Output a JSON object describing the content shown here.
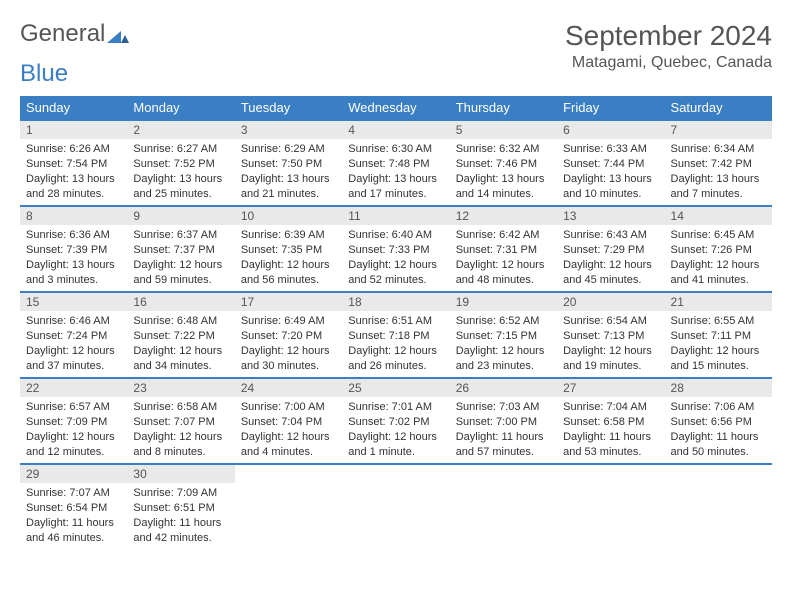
{
  "brand": {
    "name1": "General",
    "name2": "Blue"
  },
  "title": "September 2024",
  "location": "Matagami, Quebec, Canada",
  "columns": [
    "Sunday",
    "Monday",
    "Tuesday",
    "Wednesday",
    "Thursday",
    "Friday",
    "Saturday"
  ],
  "colors": {
    "header_bg": "#3a7fc4",
    "header_text": "#ffffff",
    "daynum_bg": "#e9e9e9",
    "text": "#333333",
    "title_text": "#555555"
  },
  "weeks": [
    [
      {
        "n": "1",
        "sr": "Sunrise: 6:26 AM",
        "ss": "Sunset: 7:54 PM",
        "dl": "Daylight: 13 hours and 28 minutes."
      },
      {
        "n": "2",
        "sr": "Sunrise: 6:27 AM",
        "ss": "Sunset: 7:52 PM",
        "dl": "Daylight: 13 hours and 25 minutes."
      },
      {
        "n": "3",
        "sr": "Sunrise: 6:29 AM",
        "ss": "Sunset: 7:50 PM",
        "dl": "Daylight: 13 hours and 21 minutes."
      },
      {
        "n": "4",
        "sr": "Sunrise: 6:30 AM",
        "ss": "Sunset: 7:48 PM",
        "dl": "Daylight: 13 hours and 17 minutes."
      },
      {
        "n": "5",
        "sr": "Sunrise: 6:32 AM",
        "ss": "Sunset: 7:46 PM",
        "dl": "Daylight: 13 hours and 14 minutes."
      },
      {
        "n": "6",
        "sr": "Sunrise: 6:33 AM",
        "ss": "Sunset: 7:44 PM",
        "dl": "Daylight: 13 hours and 10 minutes."
      },
      {
        "n": "7",
        "sr": "Sunrise: 6:34 AM",
        "ss": "Sunset: 7:42 PM",
        "dl": "Daylight: 13 hours and 7 minutes."
      }
    ],
    [
      {
        "n": "8",
        "sr": "Sunrise: 6:36 AM",
        "ss": "Sunset: 7:39 PM",
        "dl": "Daylight: 13 hours and 3 minutes."
      },
      {
        "n": "9",
        "sr": "Sunrise: 6:37 AM",
        "ss": "Sunset: 7:37 PM",
        "dl": "Daylight: 12 hours and 59 minutes."
      },
      {
        "n": "10",
        "sr": "Sunrise: 6:39 AM",
        "ss": "Sunset: 7:35 PM",
        "dl": "Daylight: 12 hours and 56 minutes."
      },
      {
        "n": "11",
        "sr": "Sunrise: 6:40 AM",
        "ss": "Sunset: 7:33 PM",
        "dl": "Daylight: 12 hours and 52 minutes."
      },
      {
        "n": "12",
        "sr": "Sunrise: 6:42 AM",
        "ss": "Sunset: 7:31 PM",
        "dl": "Daylight: 12 hours and 48 minutes."
      },
      {
        "n": "13",
        "sr": "Sunrise: 6:43 AM",
        "ss": "Sunset: 7:29 PM",
        "dl": "Daylight: 12 hours and 45 minutes."
      },
      {
        "n": "14",
        "sr": "Sunrise: 6:45 AM",
        "ss": "Sunset: 7:26 PM",
        "dl": "Daylight: 12 hours and 41 minutes."
      }
    ],
    [
      {
        "n": "15",
        "sr": "Sunrise: 6:46 AM",
        "ss": "Sunset: 7:24 PM",
        "dl": "Daylight: 12 hours and 37 minutes."
      },
      {
        "n": "16",
        "sr": "Sunrise: 6:48 AM",
        "ss": "Sunset: 7:22 PM",
        "dl": "Daylight: 12 hours and 34 minutes."
      },
      {
        "n": "17",
        "sr": "Sunrise: 6:49 AM",
        "ss": "Sunset: 7:20 PM",
        "dl": "Daylight: 12 hours and 30 minutes."
      },
      {
        "n": "18",
        "sr": "Sunrise: 6:51 AM",
        "ss": "Sunset: 7:18 PM",
        "dl": "Daylight: 12 hours and 26 minutes."
      },
      {
        "n": "19",
        "sr": "Sunrise: 6:52 AM",
        "ss": "Sunset: 7:15 PM",
        "dl": "Daylight: 12 hours and 23 minutes."
      },
      {
        "n": "20",
        "sr": "Sunrise: 6:54 AM",
        "ss": "Sunset: 7:13 PM",
        "dl": "Daylight: 12 hours and 19 minutes."
      },
      {
        "n": "21",
        "sr": "Sunrise: 6:55 AM",
        "ss": "Sunset: 7:11 PM",
        "dl": "Daylight: 12 hours and 15 minutes."
      }
    ],
    [
      {
        "n": "22",
        "sr": "Sunrise: 6:57 AM",
        "ss": "Sunset: 7:09 PM",
        "dl": "Daylight: 12 hours and 12 minutes."
      },
      {
        "n": "23",
        "sr": "Sunrise: 6:58 AM",
        "ss": "Sunset: 7:07 PM",
        "dl": "Daylight: 12 hours and 8 minutes."
      },
      {
        "n": "24",
        "sr": "Sunrise: 7:00 AM",
        "ss": "Sunset: 7:04 PM",
        "dl": "Daylight: 12 hours and 4 minutes."
      },
      {
        "n": "25",
        "sr": "Sunrise: 7:01 AM",
        "ss": "Sunset: 7:02 PM",
        "dl": "Daylight: 12 hours and 1 minute."
      },
      {
        "n": "26",
        "sr": "Sunrise: 7:03 AM",
        "ss": "Sunset: 7:00 PM",
        "dl": "Daylight: 11 hours and 57 minutes."
      },
      {
        "n": "27",
        "sr": "Sunrise: 7:04 AM",
        "ss": "Sunset: 6:58 PM",
        "dl": "Daylight: 11 hours and 53 minutes."
      },
      {
        "n": "28",
        "sr": "Sunrise: 7:06 AM",
        "ss": "Sunset: 6:56 PM",
        "dl": "Daylight: 11 hours and 50 minutes."
      }
    ],
    [
      {
        "n": "29",
        "sr": "Sunrise: 7:07 AM",
        "ss": "Sunset: 6:54 PM",
        "dl": "Daylight: 11 hours and 46 minutes."
      },
      {
        "n": "30",
        "sr": "Sunrise: 7:09 AM",
        "ss": "Sunset: 6:51 PM",
        "dl": "Daylight: 11 hours and 42 minutes."
      },
      null,
      null,
      null,
      null,
      null
    ]
  ]
}
